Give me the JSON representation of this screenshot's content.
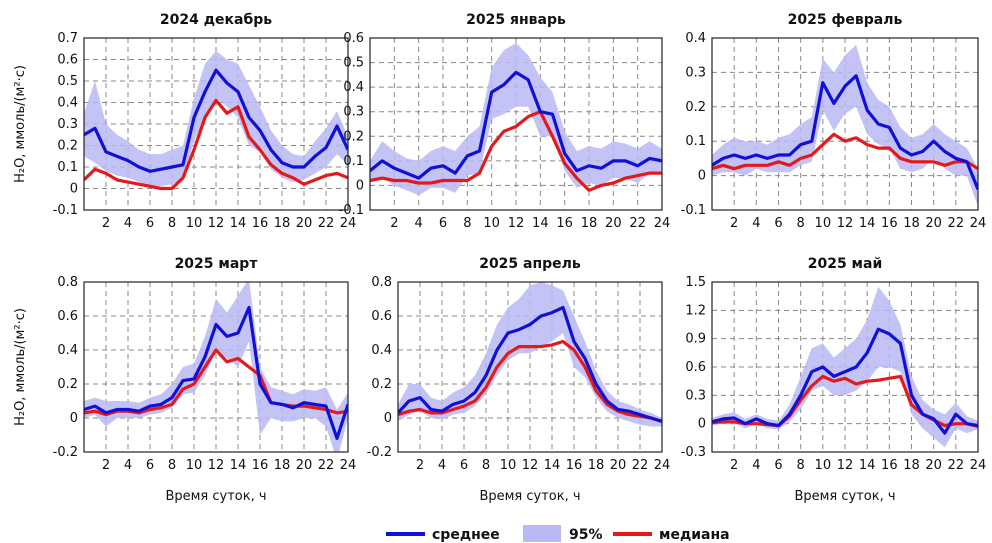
{
  "figure": {
    "ylabel": "H₂O, ммоль/(м²·с)",
    "xlabel": "Время суток, ч",
    "colors": {
      "mean": "#1010d8",
      "median": "#e31a1c",
      "band": "#b8b8f4",
      "grid": "#888888"
    }
  },
  "legend": {
    "mean_label": "среднее",
    "band_label": "95%",
    "median_label": "медиана"
  },
  "chart_data": [
    {
      "type": "line",
      "title": "2024 декабрь",
      "xlim": [
        0,
        24
      ],
      "ylim": [
        -0.1,
        0.7
      ],
      "x_ticks": [
        2,
        4,
        6,
        8,
        10,
        12,
        14,
        16,
        18,
        20,
        22,
        24
      ],
      "y_ticks": [
        -0.1,
        0,
        0.1,
        0.2,
        0.3,
        0.4,
        0.5,
        0.6,
        0.7
      ],
      "y_tick_labels": [
        "-0.1",
        "0",
        "0.1",
        "0.2",
        "0.3",
        "0.4",
        "0.5",
        "0.6",
        "0.7"
      ],
      "x": [
        0,
        1,
        2,
        3,
        4,
        5,
        6,
        7,
        8,
        9,
        10,
        11,
        12,
        13,
        14,
        15,
        16,
        17,
        18,
        19,
        20,
        21,
        22,
        23,
        24
      ],
      "series": [
        {
          "name": "среднее",
          "values": [
            0.25,
            0.28,
            0.17,
            0.15,
            0.13,
            0.1,
            0.08,
            0.09,
            0.1,
            0.11,
            0.33,
            0.45,
            0.55,
            0.49,
            0.45,
            0.33,
            0.27,
            0.18,
            0.12,
            0.1,
            0.1,
            0.15,
            0.19,
            0.29,
            0.18
          ]
        },
        {
          "name": "медиана",
          "values": [
            0.04,
            0.09,
            0.07,
            0.04,
            0.03,
            0.02,
            0.01,
            0.0,
            0.0,
            0.05,
            0.18,
            0.33,
            0.41,
            0.35,
            0.38,
            0.24,
            0.18,
            0.11,
            0.07,
            0.05,
            0.02,
            0.04,
            0.06,
            0.07,
            0.05
          ]
        },
        {
          "name": "95%",
          "upper": [
            0.35,
            0.5,
            0.3,
            0.25,
            0.22,
            0.18,
            0.16,
            0.16,
            0.18,
            0.2,
            0.42,
            0.58,
            0.64,
            0.6,
            0.58,
            0.48,
            0.38,
            0.27,
            0.2,
            0.16,
            0.15,
            0.22,
            0.28,
            0.36,
            0.24
          ],
          "lower": [
            0.15,
            0.12,
            0.08,
            0.06,
            0.05,
            0.03,
            0.01,
            0.01,
            0.02,
            0.04,
            0.22,
            0.33,
            0.42,
            0.38,
            0.33,
            0.2,
            0.17,
            0.09,
            0.05,
            0.03,
            0.04,
            0.07,
            0.1,
            0.16,
            0.11
          ]
        }
      ]
    },
    {
      "type": "line",
      "title": "2025 январь",
      "xlim": [
        0,
        24
      ],
      "ylim": [
        -0.1,
        0.6
      ],
      "x_ticks": [
        2,
        4,
        6,
        8,
        10,
        12,
        14,
        16,
        18,
        20,
        22,
        24
      ],
      "y_ticks": [
        -0.1,
        0,
        0.1,
        0.2,
        0.3,
        0.4,
        0.5,
        0.6
      ],
      "y_tick_labels": [
        "-0.1",
        "0",
        "0.1",
        "0.2",
        "0.3",
        "0.4",
        "0.5",
        "0.6"
      ],
      "x": [
        0,
        1,
        2,
        3,
        4,
        5,
        6,
        7,
        8,
        9,
        10,
        11,
        12,
        13,
        14,
        15,
        16,
        17,
        18,
        19,
        20,
        21,
        22,
        23,
        24
      ],
      "series": [
        {
          "name": "среднее",
          "values": [
            0.06,
            0.1,
            0.07,
            0.05,
            0.03,
            0.07,
            0.08,
            0.05,
            0.12,
            0.14,
            0.38,
            0.41,
            0.46,
            0.43,
            0.3,
            0.29,
            0.13,
            0.06,
            0.08,
            0.07,
            0.1,
            0.1,
            0.08,
            0.11,
            0.1
          ]
        },
        {
          "name": "медиана",
          "values": [
            0.02,
            0.03,
            0.02,
            0.02,
            0.01,
            0.01,
            0.02,
            0.02,
            0.02,
            0.05,
            0.16,
            0.22,
            0.24,
            0.28,
            0.3,
            0.2,
            0.09,
            0.03,
            -0.02,
            0.0,
            0.01,
            0.03,
            0.04,
            0.05,
            0.05
          ]
        },
        {
          "name": "95%",
          "upper": [
            0.1,
            0.18,
            0.14,
            0.11,
            0.1,
            0.14,
            0.16,
            0.14,
            0.2,
            0.24,
            0.48,
            0.55,
            0.58,
            0.53,
            0.44,
            0.38,
            0.22,
            0.14,
            0.16,
            0.15,
            0.18,
            0.17,
            0.15,
            0.18,
            0.15
          ],
          "lower": [
            0.02,
            0.03,
            0.0,
            -0.02,
            -0.04,
            -0.01,
            -0.01,
            -0.03,
            0.04,
            0.05,
            0.27,
            0.29,
            0.32,
            0.32,
            0.2,
            0.2,
            0.06,
            -0.01,
            0.01,
            0.0,
            0.03,
            0.03,
            0.01,
            0.05,
            0.05
          ]
        }
      ]
    },
    {
      "type": "line",
      "title": "2025 февраль",
      "xlim": [
        0,
        24
      ],
      "ylim": [
        -0.1,
        0.4
      ],
      "x_ticks": [
        2,
        4,
        6,
        8,
        10,
        12,
        14,
        16,
        18,
        20,
        22,
        24
      ],
      "y_ticks": [
        -0.1,
        0,
        0.1,
        0.2,
        0.3,
        0.4
      ],
      "y_tick_labels": [
        "-0.1",
        "0",
        "0.1",
        "0.2",
        "0.3",
        "0.4"
      ],
      "x": [
        0,
        1,
        2,
        3,
        4,
        5,
        6,
        7,
        8,
        9,
        10,
        11,
        12,
        13,
        14,
        15,
        16,
        17,
        18,
        19,
        20,
        21,
        22,
        23,
        24
      ],
      "series": [
        {
          "name": "среднее",
          "values": [
            0.03,
            0.05,
            0.06,
            0.05,
            0.06,
            0.05,
            0.06,
            0.06,
            0.09,
            0.1,
            0.27,
            0.21,
            0.26,
            0.29,
            0.19,
            0.15,
            0.14,
            0.08,
            0.06,
            0.07,
            0.1,
            0.07,
            0.05,
            0.04,
            -0.04
          ]
        },
        {
          "name": "медиана",
          "values": [
            0.02,
            0.03,
            0.02,
            0.03,
            0.03,
            0.03,
            0.04,
            0.03,
            0.05,
            0.06,
            0.09,
            0.12,
            0.1,
            0.11,
            0.09,
            0.08,
            0.08,
            0.05,
            0.04,
            0.04,
            0.04,
            0.03,
            0.04,
            0.04,
            0.02
          ]
        },
        {
          "name": "95%",
          "upper": [
            0.06,
            0.09,
            0.11,
            0.1,
            0.1,
            0.09,
            0.11,
            0.12,
            0.15,
            0.17,
            0.34,
            0.3,
            0.35,
            0.38,
            0.27,
            0.22,
            0.2,
            0.14,
            0.11,
            0.12,
            0.15,
            0.12,
            0.1,
            0.08,
            0.02
          ],
          "lower": [
            0.0,
            0.01,
            0.01,
            0.0,
            0.02,
            0.01,
            0.01,
            0.01,
            0.03,
            0.04,
            0.19,
            0.13,
            0.18,
            0.2,
            0.12,
            0.09,
            0.08,
            0.02,
            0.01,
            0.02,
            0.05,
            0.02,
            0.0,
            0.0,
            -0.09
          ]
        }
      ]
    },
    {
      "type": "line",
      "title": "2025 март",
      "xlim": [
        0,
        24
      ],
      "ylim": [
        -0.2,
        0.8
      ],
      "x_ticks": [
        2,
        4,
        6,
        8,
        10,
        12,
        14,
        16,
        18,
        20,
        22,
        24
      ],
      "y_ticks": [
        -0.2,
        0,
        0.2,
        0.4,
        0.6,
        0.8
      ],
      "y_tick_labels": [
        "-0.2",
        "0",
        "0.2",
        "0.4",
        "0.6",
        "0.8"
      ],
      "x": [
        0,
        1,
        2,
        3,
        4,
        5,
        6,
        7,
        8,
        9,
        10,
        11,
        12,
        13,
        14,
        15,
        16,
        17,
        18,
        19,
        20,
        21,
        22,
        23,
        24
      ],
      "series": [
        {
          "name": "среднее",
          "values": [
            0.05,
            0.07,
            0.03,
            0.05,
            0.05,
            0.04,
            0.07,
            0.08,
            0.12,
            0.22,
            0.23,
            0.36,
            0.55,
            0.48,
            0.5,
            0.65,
            0.2,
            0.09,
            0.08,
            0.06,
            0.09,
            0.08,
            0.07,
            -0.12,
            0.08
          ]
        },
        {
          "name": "медиана",
          "values": [
            0.03,
            0.04,
            0.02,
            0.04,
            0.04,
            0.03,
            0.05,
            0.06,
            0.08,
            0.17,
            0.2,
            0.3,
            0.4,
            0.33,
            0.35,
            0.3,
            0.25,
            0.09,
            0.08,
            0.07,
            0.07,
            0.06,
            0.05,
            0.03,
            0.04
          ]
        },
        {
          "name": "95%",
          "upper": [
            0.1,
            0.12,
            0.1,
            0.1,
            0.1,
            0.09,
            0.12,
            0.14,
            0.2,
            0.3,
            0.32,
            0.48,
            0.7,
            0.62,
            0.72,
            0.82,
            0.3,
            0.18,
            0.16,
            0.14,
            0.17,
            0.16,
            0.18,
            0.05,
            0.15
          ],
          "lower": [
            0.0,
            0.02,
            -0.05,
            0.0,
            0.0,
            0.0,
            0.02,
            0.03,
            0.06,
            0.14,
            0.15,
            0.25,
            0.4,
            0.35,
            0.3,
            0.45,
            -0.1,
            0.0,
            -0.02,
            -0.02,
            0.0,
            0.0,
            -0.05,
            -0.25,
            0.0
          ]
        }
      ]
    },
    {
      "type": "line",
      "title": "2025 апрель",
      "xlim": [
        0,
        24
      ],
      "ylim": [
        -0.2,
        0.8
      ],
      "x_ticks": [
        2,
        4,
        6,
        8,
        10,
        12,
        14,
        16,
        18,
        20,
        22,
        24
      ],
      "y_ticks": [
        -0.2,
        0,
        0.2,
        0.4,
        0.6,
        0.8
      ],
      "y_tick_labels": [
        "-0.2",
        "0",
        "0.2",
        "0.4",
        "0.6",
        "0.8"
      ],
      "x": [
        0,
        1,
        2,
        3,
        4,
        5,
        6,
        7,
        8,
        9,
        10,
        11,
        12,
        13,
        14,
        15,
        16,
        17,
        18,
        19,
        20,
        21,
        22,
        23,
        24
      ],
      "series": [
        {
          "name": "среднее",
          "values": [
            0.03,
            0.1,
            0.12,
            0.05,
            0.04,
            0.08,
            0.1,
            0.15,
            0.25,
            0.4,
            0.5,
            0.52,
            0.55,
            0.6,
            0.62,
            0.65,
            0.45,
            0.35,
            0.2,
            0.1,
            0.05,
            0.04,
            0.02,
            0.0,
            -0.02
          ]
        },
        {
          "name": "медиана",
          "values": [
            0.02,
            0.04,
            0.05,
            0.03,
            0.03,
            0.05,
            0.07,
            0.1,
            0.18,
            0.3,
            0.38,
            0.42,
            0.42,
            0.42,
            0.43,
            0.45,
            0.4,
            0.3,
            0.16,
            0.08,
            0.04,
            0.02,
            0.01,
            0.0,
            -0.02
          ]
        },
        {
          "name": "95%",
          "upper": [
            0.08,
            0.2,
            0.2,
            0.12,
            0.1,
            0.15,
            0.18,
            0.25,
            0.38,
            0.55,
            0.65,
            0.7,
            0.78,
            0.8,
            0.78,
            0.75,
            0.6,
            0.45,
            0.28,
            0.16,
            0.1,
            0.08,
            0.05,
            0.03,
            0.0
          ],
          "lower": [
            -0.02,
            0.02,
            0.04,
            0.0,
            -0.01,
            0.02,
            0.03,
            0.07,
            0.14,
            0.25,
            0.34,
            0.38,
            0.38,
            0.42,
            0.45,
            0.5,
            0.3,
            0.24,
            0.12,
            0.04,
            0.0,
            -0.02,
            -0.04,
            -0.05,
            -0.05
          ]
        }
      ]
    },
    {
      "type": "line",
      "title": "2025 май",
      "xlim": [
        0,
        24
      ],
      "ylim": [
        -0.3,
        1.5
      ],
      "x_ticks": [
        2,
        4,
        6,
        8,
        10,
        12,
        14,
        16,
        18,
        20,
        22,
        24
      ],
      "y_ticks": [
        -0.3,
        0,
        0.3,
        0.6,
        0.9,
        1.2,
        1.5
      ],
      "y_tick_labels": [
        "-0.3",
        "0",
        "0.3",
        "0.6",
        "0.9",
        "1.2",
        "1.5"
      ],
      "x": [
        0,
        1,
        2,
        3,
        4,
        5,
        6,
        7,
        8,
        9,
        10,
        11,
        12,
        13,
        14,
        15,
        16,
        17,
        18,
        19,
        20,
        21,
        22,
        23,
        24
      ],
      "series": [
        {
          "name": "среднее",
          "values": [
            0.02,
            0.05,
            0.06,
            0.0,
            0.05,
            0.0,
            -0.02,
            0.1,
            0.3,
            0.55,
            0.6,
            0.5,
            0.55,
            0.6,
            0.75,
            1.0,
            0.95,
            0.85,
            0.3,
            0.1,
            0.05,
            -0.1,
            0.1,
            0.0,
            -0.02
          ]
        },
        {
          "name": "медиана",
          "values": [
            0.01,
            0.02,
            0.02,
            0.0,
            0.0,
            -0.01,
            -0.02,
            0.08,
            0.25,
            0.4,
            0.5,
            0.45,
            0.48,
            0.42,
            0.45,
            0.46,
            0.48,
            0.5,
            0.2,
            0.1,
            0.04,
            -0.02,
            0.0,
            0.0,
            -0.03
          ]
        },
        {
          "name": "95%",
          "upper": [
            0.06,
            0.1,
            0.12,
            0.05,
            0.1,
            0.05,
            0.03,
            0.2,
            0.5,
            0.8,
            0.85,
            0.7,
            0.8,
            0.9,
            1.1,
            1.45,
            1.3,
            1.05,
            0.5,
            0.25,
            0.15,
            0.1,
            0.22,
            0.08,
            0.03
          ],
          "lower": [
            -0.02,
            0.0,
            0.0,
            -0.05,
            0.0,
            -0.05,
            -0.06,
            0.02,
            0.15,
            0.35,
            0.4,
            0.3,
            0.3,
            0.35,
            0.45,
            0.6,
            0.6,
            0.55,
            0.1,
            -0.05,
            -0.15,
            -0.25,
            -0.05,
            -0.1,
            -0.06
          ]
        }
      ]
    }
  ]
}
